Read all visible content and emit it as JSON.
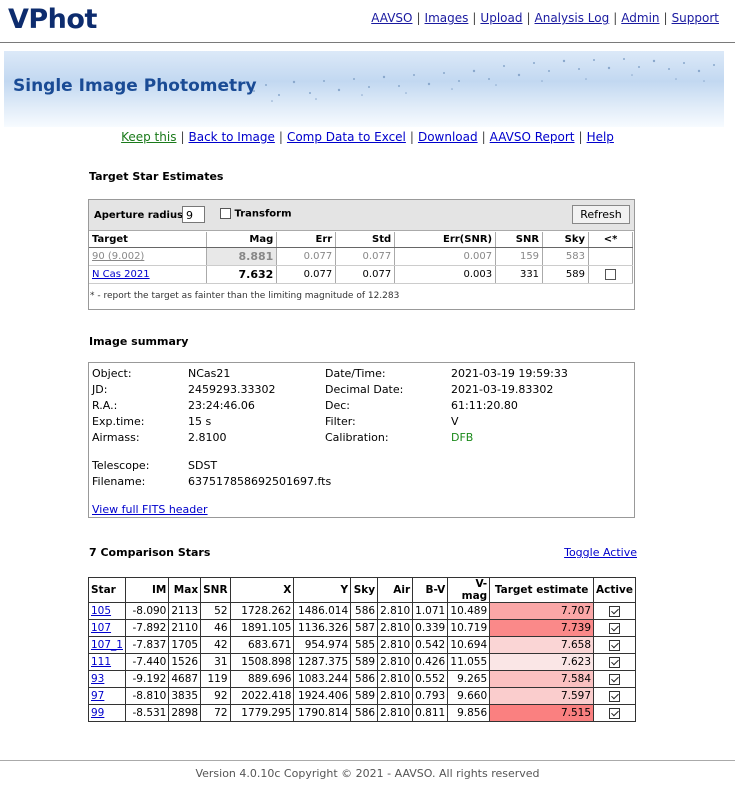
{
  "app": {
    "logo": "VPhot",
    "nav": [
      "AAVSO",
      "Images",
      "Upload",
      "Analysis Log",
      "Admin",
      "Support"
    ],
    "banner_title": "Single Image Photometry",
    "subnav": [
      "Keep this",
      "Back to Image",
      "Comp Data to Excel",
      "Download",
      "AAVSO Report",
      "Help"
    ],
    "separator": "|"
  },
  "target_section": {
    "title": "Target Star Estimates",
    "aperture_label": "Aperture radius:",
    "aperture_value": "9",
    "transform_label": "Transform",
    "refresh_label": "Refresh",
    "columns": [
      "Target",
      "Mag",
      "Err",
      "Std",
      "Err(SNR)",
      "SNR",
      "Sky",
      "<*"
    ],
    "rows": [
      {
        "target": "90 (9.002)",
        "mag": "8.881",
        "err": "0.077",
        "std": "0.077",
        "err_snr": "0.007",
        "snr": "159",
        "sky": "583",
        "faint": false
      },
      {
        "target": "N Cas 2021",
        "mag": "7.632",
        "err": "0.077",
        "std": "0.077",
        "err_snr": "0.003",
        "snr": "331",
        "sky": "589",
        "faint": true
      }
    ],
    "footnote": "* - report the target as fainter than the limiting magnitude of 12.283"
  },
  "summary": {
    "title": "Image summary",
    "object_label": "Object:",
    "object": "NCas21",
    "jd_label": "JD:",
    "jd": "2459293.33302",
    "ra_label": "R.A.:",
    "ra": "23:24:46.06",
    "exp_label": "Exp.time:",
    "exp": "15 s",
    "airmass_label": "Airmass:",
    "airmass": "2.8100",
    "datetime_label": "Date/Time:",
    "datetime": "2021-03-19 19:59:33",
    "decimal_label": "Decimal Date:",
    "decimal": "2021-03-19.83302",
    "dec_label": "Dec:",
    "dec": "61:11:20.80",
    "filter_label": "Filter:",
    "filter": "V",
    "calibration_label": "Calibration:",
    "calibration": "DFB",
    "telescope_label": "Telescope:",
    "telescope": "SDST",
    "filename_label": "Filename:",
    "filename": "637517858692501697.fts",
    "fits_link": "View full FITS header"
  },
  "comparison": {
    "title": "7 Comparison Stars",
    "toggle_label": "Toggle Active",
    "columns": [
      "Star",
      "IM",
      "Max",
      "SNR",
      "X",
      "Y",
      "Sky",
      "Air",
      "B-V",
      "V-mag",
      "Target estimate",
      "Active"
    ],
    "rows": [
      {
        "star": "105",
        "im": "-8.090",
        "max": "2113",
        "snr": "52",
        "x": "1728.262",
        "y": "1486.014",
        "sky": "586",
        "air": "2.810",
        "bv": "1.071",
        "vmag": "10.489",
        "est": "7.707",
        "active": true
      },
      {
        "star": "107",
        "im": "-7.892",
        "max": "2110",
        "snr": "46",
        "x": "1891.105",
        "y": "1136.326",
        "sky": "587",
        "air": "2.810",
        "bv": "0.339",
        "vmag": "10.719",
        "est": "7.739",
        "active": true
      },
      {
        "star": "107_1",
        "im": "-7.837",
        "max": "1705",
        "snr": "42",
        "x": "683.671",
        "y": "954.974",
        "sky": "585",
        "air": "2.810",
        "bv": "0.542",
        "vmag": "10.694",
        "est": "7.658",
        "active": true
      },
      {
        "star": "111",
        "im": "-7.440",
        "max": "1526",
        "snr": "31",
        "x": "1508.898",
        "y": "1287.375",
        "sky": "589",
        "air": "2.810",
        "bv": "0.426",
        "vmag": "11.055",
        "est": "7.623",
        "active": true
      },
      {
        "star": "93",
        "im": "-9.192",
        "max": "4687",
        "snr": "119",
        "x": "889.696",
        "y": "1083.244",
        "sky": "586",
        "air": "2.810",
        "bv": "0.552",
        "vmag": "9.265",
        "est": "7.584",
        "active": true
      },
      {
        "star": "97",
        "im": "-8.810",
        "max": "3835",
        "snr": "92",
        "x": "2022.418",
        "y": "1924.406",
        "sky": "589",
        "air": "2.810",
        "bv": "0.793",
        "vmag": "9.660",
        "est": "7.597",
        "active": true
      },
      {
        "star": "99",
        "im": "-8.531",
        "max": "2898",
        "snr": "72",
        "x": "1779.295",
        "y": "1790.814",
        "sky": "586",
        "air": "2.810",
        "bv": "0.811",
        "vmag": "9.856",
        "est": "7.515",
        "active": true
      }
    ]
  },
  "footer": "Version 4.0.10c Copyright © 2021 - AAVSO. All rights reserved"
}
